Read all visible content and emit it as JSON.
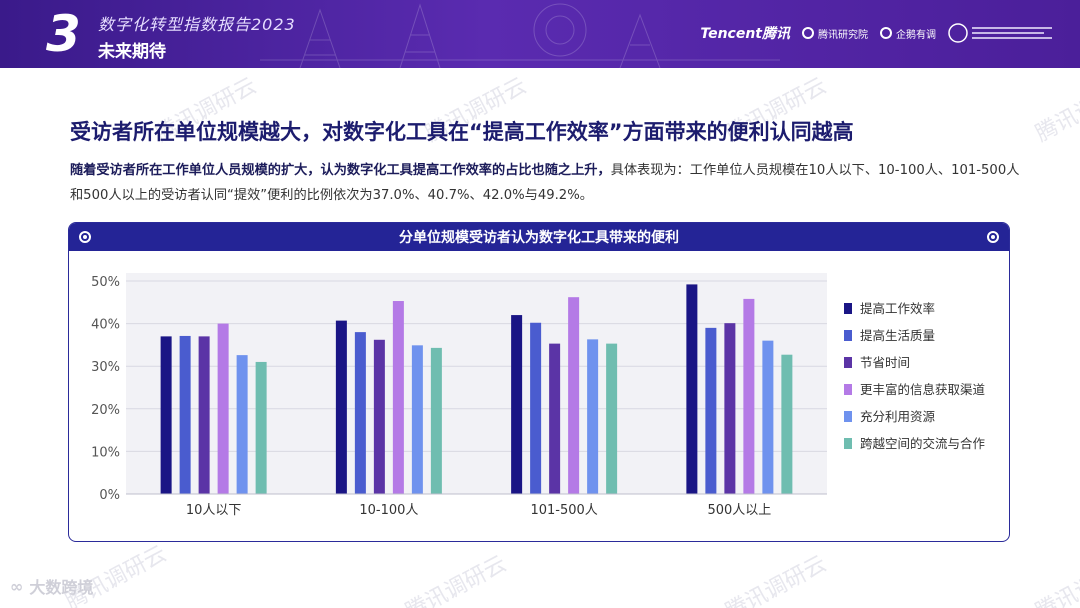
{
  "header": {
    "section_number": "3",
    "report_title": "数字化转型指数报告2023",
    "section_title": "未来期待",
    "logos": [
      "Tencent腾讯",
      "腾讯研究院",
      "企鹅有调"
    ]
  },
  "watermark_text": "腾讯调研云",
  "headline": "受访者所在单位规模越大，对数字化工具在“提高工作效率”方面带来的便利认同越高",
  "description": {
    "bold": "随着受访者所在工作单位人员规模的扩大，认为数字化工具提高工作效率的占比也随之上升，",
    "normal": "具体表现为：工作单位人员规模在10人以下、10-100人、101-500人和500人以上的受访者认同“提效”便利的比例依次为37.0%、40.7%、42.0%与49.2%。"
  },
  "bottom_logo": "大数跨境",
  "chart_data": {
    "type": "bar",
    "title": "分单位规模受访者认为数字化工具带来的便利",
    "categories": [
      "10人以下",
      "10-100人",
      "101-500人",
      "500人以上"
    ],
    "ylim": [
      0,
      50
    ],
    "yticks": [
      "0%",
      "10%",
      "20%",
      "30%",
      "40%",
      "50%"
    ],
    "grid": true,
    "legend_position": "right",
    "series": [
      {
        "name": "提高工作效率",
        "color": "#1a1585",
        "values": [
          37.0,
          40.7,
          42.0,
          49.2
        ]
      },
      {
        "name": "提高生活质量",
        "color": "#4a5ccf",
        "values": [
          37.1,
          38.0,
          40.2,
          39.0
        ]
      },
      {
        "name": "节省时间",
        "color": "#5b34a6",
        "values": [
          37.0,
          36.2,
          35.3,
          40.1
        ]
      },
      {
        "name": "更丰富的信息获取渠道",
        "color": "#b47ae6",
        "values": [
          40.0,
          45.3,
          46.2,
          45.8
        ]
      },
      {
        "name": "充分利用资源",
        "color": "#6f92ee",
        "values": [
          32.6,
          34.9,
          36.3,
          36.0
        ]
      },
      {
        "name": "跨越空间的交流与合作",
        "color": "#6fbdb0",
        "values": [
          31.0,
          34.3,
          35.3,
          32.7
        ]
      }
    ]
  }
}
